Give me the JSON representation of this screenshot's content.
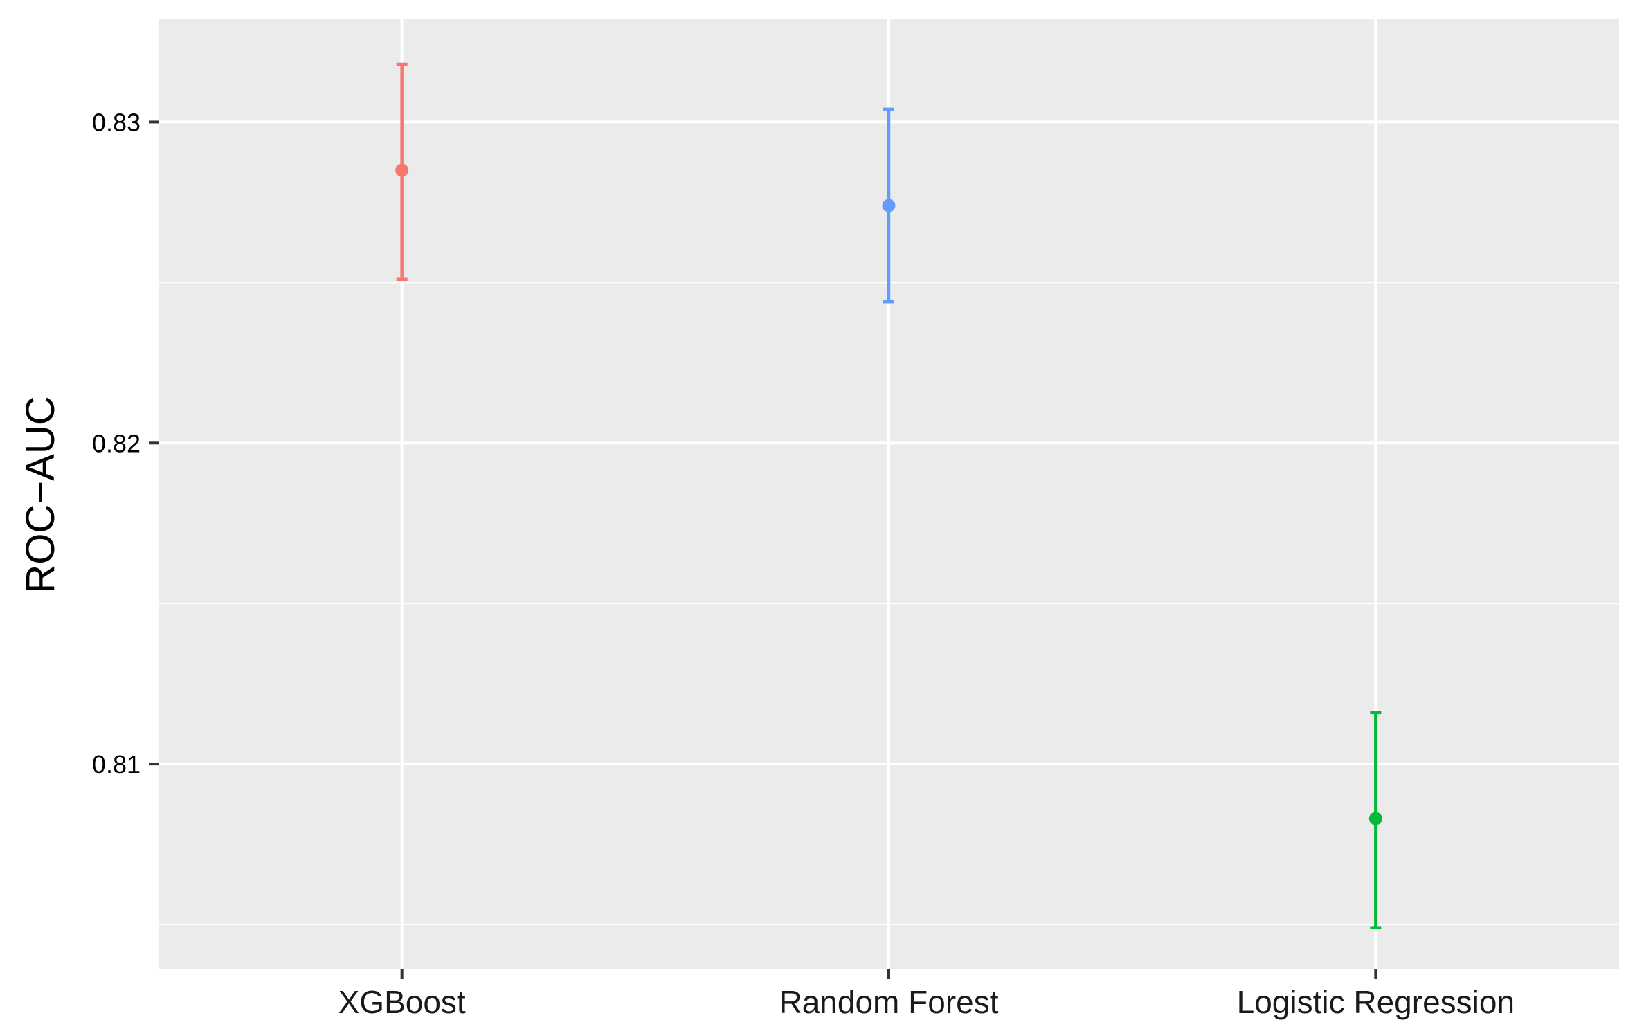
{
  "chart_data": {
    "type": "scatter",
    "subtype": "point-with-error-bars",
    "title": "",
    "xlabel": "",
    "ylabel": "ROC−AUC",
    "categories": [
      "XGBoost",
      "Random Forest",
      "Logistic Regression"
    ],
    "series": [
      {
        "category": "XGBoost",
        "value": 0.8285,
        "lower": 0.8251,
        "upper": 0.8318,
        "color": "#F8766D"
      },
      {
        "category": "Random Forest",
        "value": 0.8274,
        "lower": 0.8244,
        "upper": 0.8304,
        "color": "#619CFF"
      },
      {
        "category": "Logistic Regression",
        "value": 0.8083,
        "lower": 0.8049,
        "upper": 0.8116,
        "color": "#00BA38"
      }
    ],
    "ylim": [
      0.8036,
      0.8332
    ],
    "yticks": [
      0.81,
      0.82,
      0.83
    ],
    "ytick_labels": [
      "0.81",
      "0.82",
      "0.83"
    ],
    "minor_gridlines": [
      0.805,
      0.815,
      0.825
    ],
    "grid": true,
    "legend": "none",
    "panel_background": "#EBEBEB",
    "gridline_color": "#FFFFFF"
  }
}
